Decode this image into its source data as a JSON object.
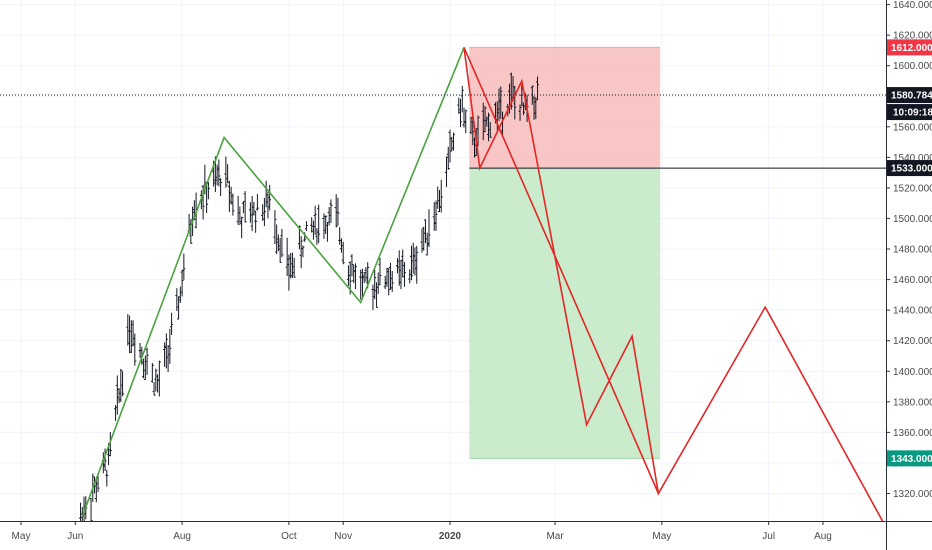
{
  "chart_data": {
    "type": "line",
    "price_axis": {
      "ticks": [
        "1320.000",
        "1340.000",
        "1360.000",
        "1380.000",
        "1400.000",
        "1420.000",
        "1440.000",
        "1460.000",
        "1480.000",
        "1500.000",
        "1520.000",
        "1540.000",
        "1560.000",
        "1580.000",
        "1600.000",
        "1620.000",
        "1640.000"
      ],
      "ylim": [
        1302,
        1643
      ]
    },
    "time_axis": {
      "labels": [
        "May",
        "Jun",
        "Aug",
        "Oct",
        "Nov",
        "2020",
        "Mar",
        "May",
        "Jul",
        "Aug"
      ],
      "label_dates": [
        "2019-05-01",
        "2019-06-01",
        "2019-08-01",
        "2019-10-01",
        "2019-11-01",
        "2020-01-01",
        "2020-03-01",
        "2020-05-01",
        "2020-07-01",
        "2020-08-01"
      ],
      "xlim": [
        "2019-04-19",
        "2020-09-06"
      ]
    },
    "current_price": {
      "label": "1580.784",
      "value": 1580.784
    },
    "countdown": {
      "label": "10:09:18"
    },
    "stop_loss": {
      "label": "1612.000",
      "value": 1612,
      "color": "#f23645"
    },
    "entry": {
      "label": "1533.000",
      "value": 1533,
      "color": "#131722"
    },
    "take_profit": {
      "label": "1343.000",
      "value": 1343,
      "color": "#089981"
    },
    "position_box": {
      "start": "2020-01-12",
      "end": "2020-04-30",
      "loss_fill": "#f7b3b3",
      "profit_fill": "#b9e6bb"
    },
    "series": [
      {
        "color": "#4aa33f",
        "points": [
          [
            "2019-06-05",
            1305
          ],
          [
            "2019-08-25",
            1553
          ],
          [
            "2019-11-11",
            1445
          ],
          [
            "2020-01-09",
            1612
          ]
        ]
      },
      {
        "color": "#e32626",
        "points": [
          [
            "2020-01-09",
            1612
          ],
          [
            "2020-01-18",
            1533
          ],
          [
            "2020-02-11",
            1590
          ],
          [
            "2020-03-19",
            1365
          ],
          [
            "2020-04-14",
            1423
          ],
          [
            "2020-04-29",
            1320
          ],
          [
            "2020-06-29",
            1442
          ],
          [
            "2020-09-04",
            1302
          ]
        ]
      },
      {
        "color": "#e32626",
        "points": [
          [
            "2020-01-09",
            1612
          ],
          [
            "2020-04-29",
            1320
          ]
        ]
      }
    ],
    "bars": {
      "color": "#131722",
      "anchors": [
        [
          "2019-06-04",
          1305
        ],
        [
          "2019-06-20",
          1340
        ],
        [
          "2019-07-02",
          1430
        ],
        [
          "2019-07-18",
          1390
        ],
        [
          "2019-07-28",
          1430
        ],
        [
          "2019-08-08",
          1510
        ],
        [
          "2019-08-25",
          1530
        ],
        [
          "2019-09-03",
          1500
        ],
        [
          "2019-09-20",
          1510
        ],
        [
          "2019-10-01",
          1465
        ],
        [
          "2019-10-14",
          1495
        ],
        [
          "2019-10-28",
          1500
        ],
        [
          "2019-11-04",
          1470
        ],
        [
          "2019-11-13",
          1455
        ],
        [
          "2019-11-27",
          1462
        ],
        [
          "2019-12-09",
          1465
        ],
        [
          "2019-12-27",
          1515
        ],
        [
          "2020-01-07",
          1575
        ],
        [
          "2020-01-14",
          1550
        ],
        [
          "2020-02-05",
          1580
        ],
        [
          "2020-02-12",
          1570
        ],
        [
          "2020-02-20",
          1580
        ]
      ]
    }
  }
}
